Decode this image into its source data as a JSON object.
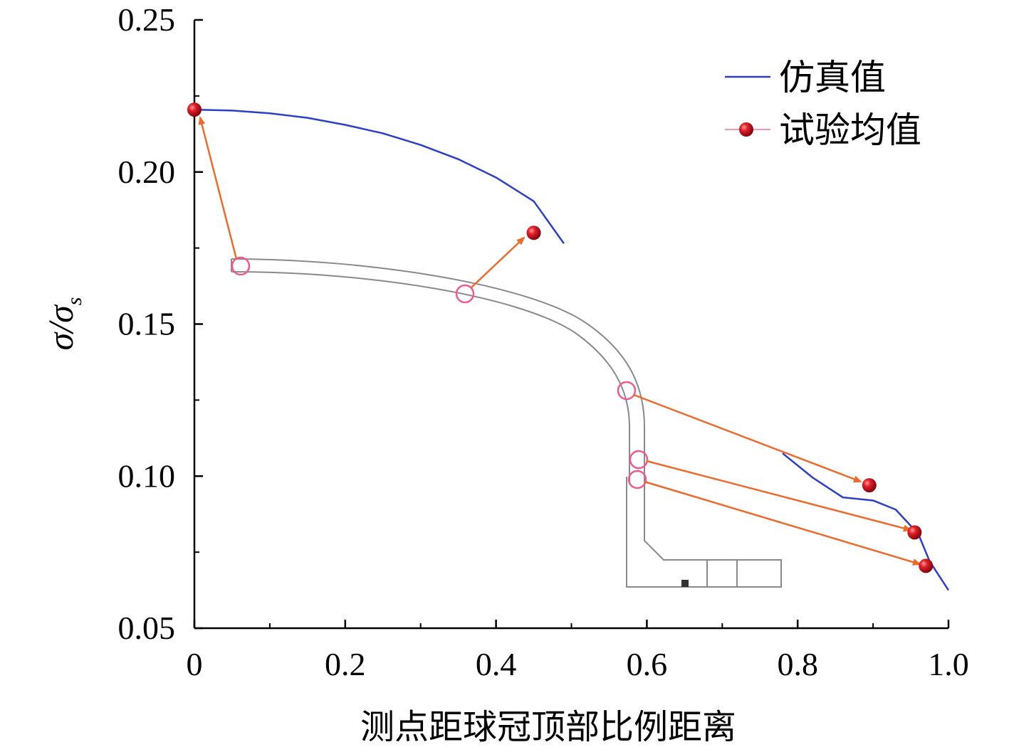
{
  "chart_data": {
    "type": "line",
    "title": "",
    "xlabel": "测点距球冠顶部比例距离",
    "ylabel_main": "σ/σ",
    "ylabel_sub": "s",
    "xlim": [
      0,
      1.0
    ],
    "ylim": [
      0.05,
      0.25
    ],
    "x_ticks": [
      {
        "value": 0,
        "label": "0"
      },
      {
        "value": 0.2,
        "label": "0.2"
      },
      {
        "value": 0.4,
        "label": "0.4"
      },
      {
        "value": 0.6,
        "label": "0.6"
      },
      {
        "value": 0.8,
        "label": "0.8"
      },
      {
        "value": 1.0,
        "label": "1.0"
      }
    ],
    "y_ticks": [
      {
        "value": 0.05,
        "label": "0.05"
      },
      {
        "value": 0.1,
        "label": "0.10"
      },
      {
        "value": 0.15,
        "label": "0.15"
      },
      {
        "value": 0.2,
        "label": "0.20"
      },
      {
        "value": 0.25,
        "label": "0.25"
      }
    ],
    "legend": {
      "position": "top-right",
      "entries": [
        {
          "name": "仿真值",
          "kind": "line",
          "color": "#2b3fc8"
        },
        {
          "name": "试验均值",
          "kind": "marker",
          "color": "#cc1018"
        }
      ]
    },
    "series": [
      {
        "name": "仿真值 (upper segment)",
        "color": "#2b3fc8",
        "x": [
          0.0,
          0.05,
          0.1,
          0.15,
          0.2,
          0.25,
          0.3,
          0.35,
          0.4,
          0.45,
          0.49
        ],
        "y": [
          0.2205,
          0.2202,
          0.2193,
          0.2178,
          0.2155,
          0.2127,
          0.2089,
          0.2042,
          0.1982,
          0.1904,
          0.1765
        ]
      },
      {
        "name": "仿真值 (lower segment)",
        "color": "#2b3fc8",
        "x": [
          0.78,
          0.82,
          0.86,
          0.9,
          0.93,
          0.96,
          0.975,
          1.0
        ],
        "y": [
          0.1075,
          0.0995,
          0.093,
          0.092,
          0.089,
          0.081,
          0.072,
          0.0625
        ]
      },
      {
        "name": "试验均值",
        "color": "#cc1018",
        "x": [
          0.0,
          0.45,
          0.895,
          0.955,
          0.97
        ],
        "y": [
          0.2205,
          0.18,
          0.097,
          0.0815,
          0.0705
        ]
      }
    ]
  }
}
